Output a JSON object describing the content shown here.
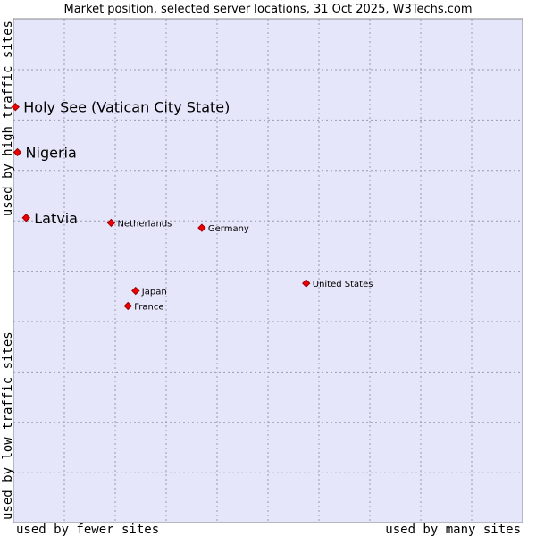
{
  "chart_data": {
    "type": "scatter",
    "title": "Market position, selected server locations, 31 Oct 2025, W3Techs.com",
    "xlabel_left": "used by fewer sites",
    "xlabel_right": "used by many sites",
    "ylabel_top": "used by high traffic sites",
    "ylabel_bottom": "used by low traffic sites",
    "xlim": [
      0,
      100
    ],
    "ylim": [
      0,
      100
    ],
    "grid": true,
    "background_color": "#e6e6fa",
    "marker_color": "#ee0000",
    "points": [
      {
        "label": "Holy See (Vatican City State)",
        "x": 0.4,
        "y": 82.5,
        "size": "large"
      },
      {
        "label": "Nigeria",
        "x": 0.8,
        "y": 73.5,
        "size": "large"
      },
      {
        "label": "Latvia",
        "x": 2.5,
        "y": 60.5,
        "size": "large"
      },
      {
        "label": "Netherlands",
        "x": 19.2,
        "y": 59.5,
        "size": "small"
      },
      {
        "label": "Germany",
        "x": 37.0,
        "y": 58.5,
        "size": "small"
      },
      {
        "label": "United States",
        "x": 57.5,
        "y": 47.5,
        "size": "small"
      },
      {
        "label": "Japan",
        "x": 24.0,
        "y": 46.0,
        "size": "small"
      },
      {
        "label": "France",
        "x": 22.5,
        "y": 43.0,
        "size": "small"
      }
    ]
  }
}
